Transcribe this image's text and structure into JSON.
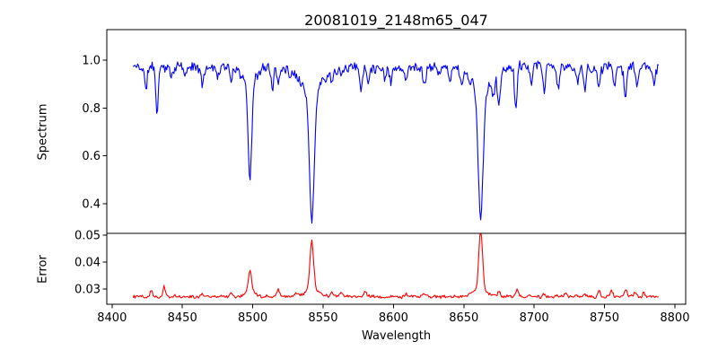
{
  "figure": {
    "background": "#ffffff",
    "text_color": "#000000",
    "axis_color": "#000000"
  },
  "chart_data": {
    "type": "line",
    "title": "20081019_2148m65_047",
    "xlabel": "Wavelength",
    "legend": "none",
    "grid": false,
    "xlim": [
      8396.3,
      8807.7
    ],
    "x_data_range": [
      8415,
      8789
    ],
    "xticks": [
      8400,
      8450,
      8500,
      8550,
      8600,
      8650,
      8700,
      8750,
      8800
    ],
    "xtick_labels": [
      "8400",
      "8450",
      "8500",
      "8550",
      "8600",
      "8650",
      "8700",
      "8750",
      "8800"
    ],
    "sampling_step": 0.645,
    "noise_seed": 11,
    "main_absorption_lines": [
      {
        "wavelength": 8498,
        "min_flux": 0.52
      },
      {
        "wavelength": 8542,
        "min_flux": 0.315
      },
      {
        "wavelength": 8662,
        "min_flux": 0.33
      }
    ],
    "main_error_peaks": [
      {
        "wavelength": 8498,
        "peak": 0.036
      },
      {
        "wavelength": 8542,
        "peak": 0.0455
      },
      {
        "wavelength": 8662,
        "peak": 0.0495
      }
    ],
    "panels": [
      {
        "name": "spectrum",
        "ylabel": "Spectrum",
        "color": "#0000ff",
        "ylim": [
          0.276,
          1.128
        ],
        "yticks": [
          0.4,
          0.6,
          0.8,
          1.0
        ],
        "ytick_labels": [
          "0.4",
          "0.6",
          "0.8",
          "1.0"
        ],
        "continuum": 0.972,
        "noise": {
          "fine": 0.018,
          "smooth": 0.011
        },
        "features_format": "[center_wavelength_A, depth, sigma_A] subtracted gaussian dips",
        "absorption_features": [
          [
            8424,
            0.095,
            0.9
          ],
          [
            8432,
            0.185,
            0.9
          ],
          [
            8442,
            0.045,
            0.8
          ],
          [
            8452,
            0.045,
            0.8
          ],
          [
            8464,
            0.075,
            1.0
          ],
          [
            8475,
            0.04,
            0.8
          ],
          [
            8485,
            0.06,
            0.9
          ],
          [
            8498,
            0.4,
            1.3
          ],
          [
            8498,
            0.06,
            5.0
          ],
          [
            8514,
            0.09,
            0.9
          ],
          [
            8518,
            0.07,
            0.9
          ],
          [
            8527,
            0.04,
            0.8
          ],
          [
            8542,
            0.55,
            1.7
          ],
          [
            8542,
            0.1,
            7.0
          ],
          [
            8556,
            0.05,
            0.8
          ],
          [
            8563,
            0.04,
            0.8
          ],
          [
            8577,
            0.1,
            0.9
          ],
          [
            8582,
            0.06,
            0.9
          ],
          [
            8594,
            0.05,
            0.8
          ],
          [
            8598,
            0.06,
            0.9
          ],
          [
            8609,
            0.07,
            0.9
          ],
          [
            8622,
            0.07,
            1.0
          ],
          [
            8632,
            0.04,
            0.8
          ],
          [
            8640,
            0.075,
            0.9
          ],
          [
            8648,
            0.06,
            0.9
          ],
          [
            8662,
            0.54,
            1.7
          ],
          [
            8662,
            0.1,
            7.0
          ],
          [
            8671,
            0.08,
            0.8
          ],
          [
            8675,
            0.155,
            1.0
          ],
          [
            8687,
            0.18,
            0.9
          ],
          [
            8698,
            0.07,
            0.9
          ],
          [
            8707,
            0.09,
            1.0
          ],
          [
            8717,
            0.09,
            1.0
          ],
          [
            8731,
            0.08,
            0.9
          ],
          [
            8736,
            0.09,
            0.9
          ],
          [
            8746,
            0.1,
            0.9
          ],
          [
            8757,
            0.09,
            0.9
          ],
          [
            8765,
            0.11,
            0.9
          ],
          [
            8773,
            0.07,
            0.9
          ],
          [
            8785,
            0.07,
            0.9
          ]
        ]
      },
      {
        "name": "error",
        "ylabel": "Error",
        "color": "#ff0000",
        "ylim": [
          0.0243,
          0.0507
        ],
        "yticks": [
          0.03,
          0.04,
          0.05
        ],
        "ytick_labels": [
          "0.03",
          "0.04",
          "0.05"
        ],
        "baseline": 0.0272,
        "noise": {
          "fine": 0.0005,
          "smooth": 0.0003
        },
        "features_format": "[center_wavelength_A, height, sigma_A] added gaussian peaks",
        "emission_peaks": [
          [
            8428,
            0.0028,
            0.8
          ],
          [
            8437,
            0.0038,
            0.8
          ],
          [
            8464,
            0.0015,
            0.8
          ],
          [
            8485,
            0.0012,
            0.8
          ],
          [
            8498,
            0.0082,
            1.2
          ],
          [
            8498,
            0.0012,
            4.0
          ],
          [
            8518,
            0.0028,
            0.9
          ],
          [
            8531,
            0.0012,
            0.8
          ],
          [
            8542,
            0.018,
            1.3
          ],
          [
            8542,
            0.0025,
            5.0
          ],
          [
            8556,
            0.0018,
            0.8
          ],
          [
            8563,
            0.0018,
            0.8
          ],
          [
            8580,
            0.0014,
            0.8
          ],
          [
            8609,
            0.001,
            0.8
          ],
          [
            8622,
            0.0012,
            0.8
          ],
          [
            8662,
            0.0222,
            1.3
          ],
          [
            8662,
            0.0025,
            5.0
          ],
          [
            8675,
            0.0018,
            0.8
          ],
          [
            8688,
            0.0028,
            0.9
          ],
          [
            8707,
            0.0012,
            0.8
          ],
          [
            8722,
            0.0013,
            0.8
          ],
          [
            8736,
            0.0012,
            0.8
          ],
          [
            8746,
            0.0018,
            0.8
          ],
          [
            8755,
            0.0022,
            0.8
          ],
          [
            8765,
            0.0026,
            0.9
          ],
          [
            8772,
            0.002,
            0.9
          ],
          [
            8778,
            0.0016,
            0.8
          ]
        ]
      }
    ]
  }
}
